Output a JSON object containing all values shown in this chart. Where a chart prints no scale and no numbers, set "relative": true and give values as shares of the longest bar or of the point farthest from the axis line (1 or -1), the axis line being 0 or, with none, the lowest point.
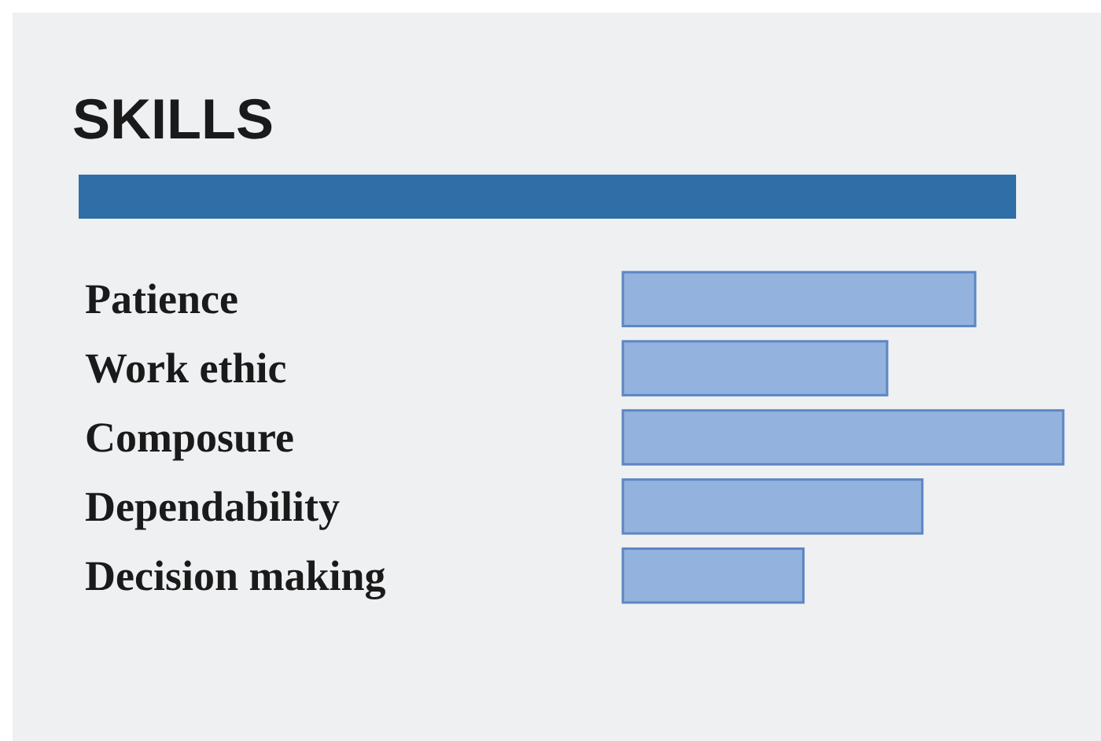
{
  "chart_data": {
    "type": "bar",
    "orientation": "horizontal",
    "relative": true,
    "title": "SKILLS",
    "categories": [
      "Patience",
      "Work ethic",
      "Composure",
      "Dependability",
      "Decision making"
    ],
    "values": [
      0.8,
      0.6,
      1,
      0.68,
      0.41
    ],
    "color": "#93b3de"
  }
}
